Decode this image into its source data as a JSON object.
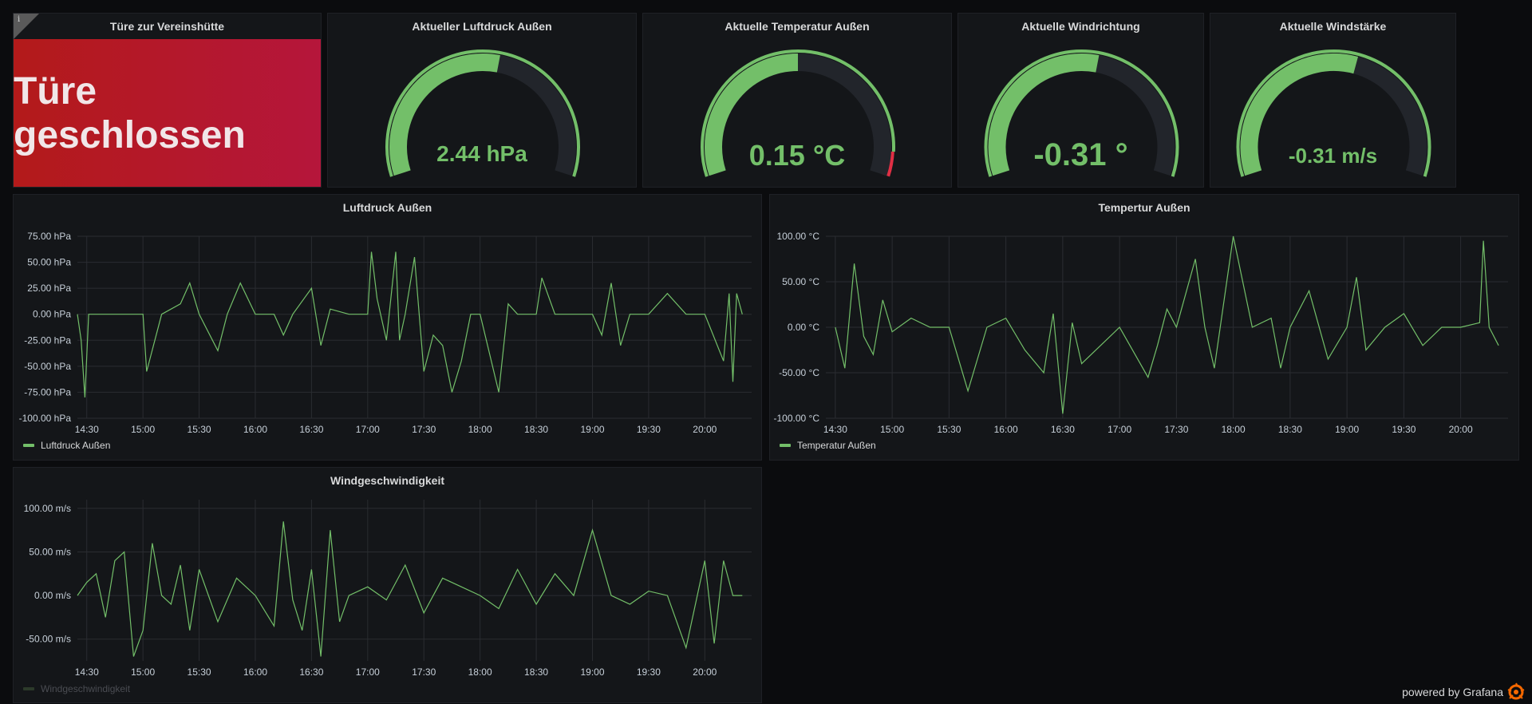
{
  "colors": {
    "background": "#0b0c0e",
    "panel": "#141619",
    "green": "#73bf69",
    "red": "#e02f44",
    "gauge_track": "#22252b",
    "status_red_start": "#b31a1a",
    "status_red_end": "#b5163b",
    "grid": "#2a2c31",
    "axis_text": "#c7d0d9"
  },
  "status_panel": {
    "title": "Türe zur Vereinshütte",
    "info_icon": "info-icon",
    "info_glyph": "i",
    "value": "Türe geschlossen"
  },
  "gauges": [
    {
      "title": "Aktueller Luftdruck Außen",
      "value": "2.44 hPa",
      "fill": 0.55,
      "threshold_red": false
    },
    {
      "title": "Aktuelle Temperatur Außen",
      "value": "0.15 °C",
      "fill": 0.5,
      "threshold_red": true
    },
    {
      "title": "Aktuelle Windrichtung",
      "value": "-0.31 °",
      "fill": 0.55,
      "threshold_red": false
    },
    {
      "title": "Aktuelle Windstärke",
      "value": "-0.31 m/s",
      "fill": 0.57,
      "threshold_red": false
    }
  ],
  "charts": {
    "pressure": {
      "title": "Luftdruck Außen",
      "legend": "Luftdruck Außen",
      "x_ticks": [
        "14:30",
        "15:00",
        "15:30",
        "16:00",
        "16:30",
        "17:00",
        "17:30",
        "18:00",
        "18:30",
        "19:00",
        "19:30",
        "20:00"
      ],
      "y_ticks": [
        "75.00 hPa",
        "50.00 hPa",
        "25.00 hPa",
        "0.00 hPa",
        "-25.00 hPa",
        "-50.00 hPa",
        "-75.00 hPa",
        "-100.00 hPa"
      ]
    },
    "temperature": {
      "title": "Tempertur Außen",
      "legend": "Temperatur Außen",
      "x_ticks": [
        "14:30",
        "15:00",
        "15:30",
        "16:00",
        "16:30",
        "17:00",
        "17:30",
        "18:00",
        "18:30",
        "19:00",
        "19:30",
        "20:00"
      ],
      "y_ticks": [
        "100.00 °C",
        "50.00 °C",
        "0.00 °C",
        "-50.00 °C",
        "-100.00 °C"
      ]
    },
    "wind": {
      "title": "Windgeschwindigkeit",
      "legend": "Windgeschwindigkeit",
      "x_ticks": [
        "14:30",
        "15:00",
        "15:30",
        "16:00",
        "16:30",
        "17:00",
        "17:30",
        "18:00",
        "18:30",
        "19:00",
        "19:30",
        "20:00"
      ],
      "y_ticks": [
        "100.00 m/s",
        "50.00 m/s",
        "0.00 m/s",
        "-50.00 m/s"
      ]
    }
  },
  "chart_data": [
    {
      "type": "line",
      "title": "Luftdruck Außen",
      "ylim": [
        -100,
        75
      ],
      "series": [
        {
          "name": "Luftdruck Außen",
          "x": [
            "14:25",
            "14:27",
            "14:29",
            "14:31",
            "14:40",
            "15:00",
            "15:02",
            "15:10",
            "15:20",
            "15:25",
            "15:30",
            "15:40",
            "15:45",
            "15:52",
            "16:00",
            "16:10",
            "16:15",
            "16:20",
            "16:30",
            "16:35",
            "16:40",
            "16:50",
            "17:00",
            "17:02",
            "17:05",
            "17:10",
            "17:15",
            "17:17",
            "17:20",
            "17:25",
            "17:30",
            "17:35",
            "17:40",
            "17:45",
            "17:50",
            "17:55",
            "18:00",
            "18:10",
            "18:15",
            "18:20",
            "18:30",
            "18:33",
            "18:40",
            "18:50",
            "19:00",
            "19:05",
            "19:10",
            "19:15",
            "19:20",
            "19:30",
            "19:40",
            "19:50",
            "20:00",
            "20:10",
            "20:13",
            "20:15",
            "20:17",
            "20:20"
          ],
          "values": [
            0,
            -25,
            -80,
            0,
            0,
            0,
            -55,
            0,
            10,
            30,
            0,
            -35,
            0,
            30,
            0,
            0,
            -20,
            0,
            25,
            -30,
            5,
            0,
            0,
            60,
            15,
            -25,
            60,
            -25,
            0,
            55,
            -55,
            -20,
            -30,
            -75,
            -45,
            0,
            0,
            -75,
            10,
            0,
            0,
            35,
            0,
            0,
            0,
            -20,
            30,
            -30,
            0,
            0,
            20,
            0,
            0,
            -45,
            20,
            -65,
            20,
            0
          ]
        }
      ]
    },
    {
      "type": "line",
      "title": "Tempertur Außen",
      "ylim": [
        -100,
        100
      ],
      "series": [
        {
          "name": "Temperatur Außen",
          "x": [
            "14:30",
            "14:35",
            "14:40",
            "14:45",
            "14:50",
            "14:55",
            "15:00",
            "15:10",
            "15:20",
            "15:30",
            "15:40",
            "15:50",
            "16:00",
            "16:10",
            "16:20",
            "16:25",
            "16:30",
            "16:35",
            "16:40",
            "17:00",
            "17:15",
            "17:20",
            "17:25",
            "17:30",
            "17:40",
            "17:45",
            "17:50",
            "18:00",
            "18:10",
            "18:20",
            "18:25",
            "18:30",
            "18:40",
            "18:50",
            "19:00",
            "19:05",
            "19:10",
            "19:20",
            "19:30",
            "19:40",
            "19:50",
            "20:00",
            "20:10",
            "20:12",
            "20:15",
            "20:20"
          ],
          "values": [
            0,
            -45,
            70,
            -10,
            -30,
            30,
            -5,
            10,
            0,
            0,
            -70,
            0,
            10,
            -25,
            -50,
            15,
            -95,
            5,
            -40,
            0,
            -55,
            -20,
            20,
            0,
            75,
            0,
            -45,
            100,
            0,
            10,
            -45,
            0,
            40,
            -35,
            0,
            55,
            -25,
            0,
            15,
            -20,
            0,
            0,
            5,
            95,
            0,
            -20
          ]
        }
      ]
    },
    {
      "type": "line",
      "title": "Windgeschwindigkeit",
      "ylim": [
        -75,
        110
      ],
      "series": [
        {
          "name": "Windgeschwindigkeit",
          "x": [
            "14:25",
            "14:30",
            "14:35",
            "14:40",
            "14:45",
            "14:50",
            "14:55",
            "15:00",
            "15:05",
            "15:10",
            "15:15",
            "15:20",
            "15:25",
            "15:30",
            "15:40",
            "15:50",
            "16:00",
            "16:10",
            "16:15",
            "16:20",
            "16:25",
            "16:30",
            "16:35",
            "16:40",
            "16:45",
            "16:50",
            "17:00",
            "17:10",
            "17:20",
            "17:30",
            "17:40",
            "17:50",
            "18:00",
            "18:10",
            "18:20",
            "18:30",
            "18:40",
            "18:50",
            "19:00",
            "19:10",
            "19:20",
            "19:30",
            "19:40",
            "19:50",
            "20:00",
            "20:05",
            "20:10",
            "20:15",
            "20:20"
          ],
          "values": [
            0,
            15,
            25,
            -25,
            40,
            50,
            -70,
            -40,
            60,
            0,
            -10,
            35,
            -40,
            30,
            -30,
            20,
            0,
            -35,
            85,
            -5,
            -40,
            30,
            -70,
            75,
            -30,
            0,
            10,
            -5,
            35,
            -20,
            20,
            10,
            0,
            -15,
            30,
            -10,
            25,
            0,
            75,
            0,
            -10,
            5,
            0,
            -60,
            40,
            -55,
            40,
            0,
            0
          ]
        }
      ]
    }
  ]
}
